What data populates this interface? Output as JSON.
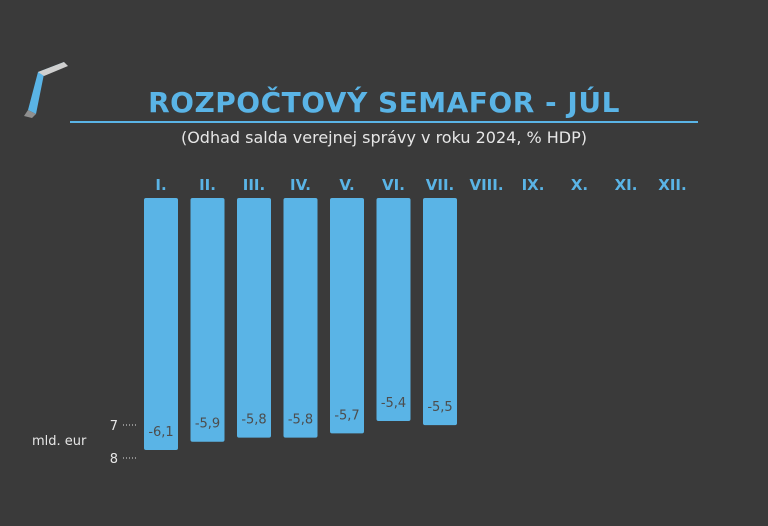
{
  "title": "ROZPOČTOVÝ SEMAFOR - JÚL",
  "subtitle": "(Odhad salda verejnej správy v roku 2024, % HDP)",
  "colors": {
    "background": "#3a3a3a",
    "accent": "#5ab4e6",
    "bar": "#5ab4e6",
    "data_label": "#4d4d4d",
    "text": "#e6e6e6",
    "axis_text": "#e6e6e6"
  },
  "logo": {
    "icon": "stylized-angle-logo-icon"
  },
  "chart_data": {
    "type": "bar",
    "title": "ROZPOČTOVÝ SEMAFOR - JÚL",
    "subtitle": "(Odhad salda verejnej správy v roku 2024, % HDP)",
    "categories": [
      "I.",
      "II.",
      "III.",
      "IV.",
      "V.",
      "VI.",
      "VII.",
      "VIII.",
      "IX.",
      "X.",
      "XI.",
      "XII."
    ],
    "values": [
      -6.1,
      -5.9,
      -5.8,
      -5.8,
      -5.7,
      -5.4,
      -5.5,
      null,
      null,
      null,
      null,
      null
    ],
    "data_labels": [
      "-6,1",
      "-5,9",
      "-5,8",
      "-5,8",
      "-5,7",
      "-5,4",
      "-5,5",
      "",
      "",
      "",
      "",
      ""
    ],
    "value_ticks": {
      "top": -5.4,
      "bottom": -6.1
    },
    "secondary_axis": {
      "label": "mld. eur",
      "ticks": [
        "7",
        "8"
      ],
      "tick_values": [
        7,
        8
      ]
    },
    "category_axis_position": "top",
    "grid": false,
    "legend": "none"
  }
}
